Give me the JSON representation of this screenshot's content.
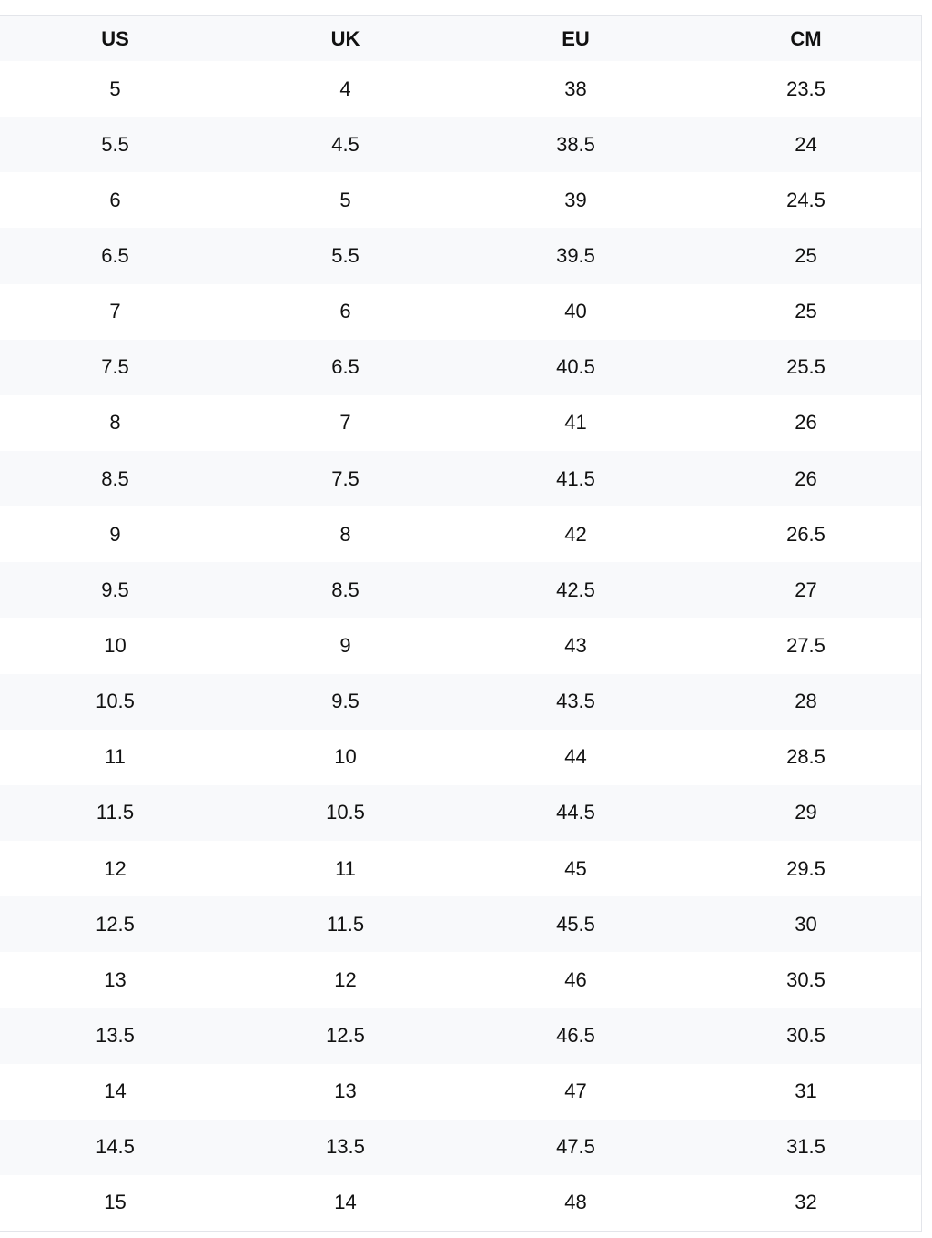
{
  "table": {
    "headers": [
      "US",
      "UK",
      "EU",
      "CM"
    ],
    "rows": [
      [
        "5",
        "4",
        "38",
        "23.5"
      ],
      [
        "5.5",
        "4.5",
        "38.5",
        "24"
      ],
      [
        "6",
        "5",
        "39",
        "24.5"
      ],
      [
        "6.5",
        "5.5",
        "39.5",
        "25"
      ],
      [
        "7",
        "6",
        "40",
        "25"
      ],
      [
        "7.5",
        "6.5",
        "40.5",
        "25.5"
      ],
      [
        "8",
        "7",
        "41",
        "26"
      ],
      [
        "8.5",
        "7.5",
        "41.5",
        "26"
      ],
      [
        "9",
        "8",
        "42",
        "26.5"
      ],
      [
        "9.5",
        "8.5",
        "42.5",
        "27"
      ],
      [
        "10",
        "9",
        "43",
        "27.5"
      ],
      [
        "10.5",
        "9.5",
        "43.5",
        "28"
      ],
      [
        "11",
        "10",
        "44",
        "28.5"
      ],
      [
        "11.5",
        "10.5",
        "44.5",
        "29"
      ],
      [
        "12",
        "11",
        "45",
        "29.5"
      ],
      [
        "12.5",
        "11.5",
        "45.5",
        "30"
      ],
      [
        "13",
        "12",
        "46",
        "30.5"
      ],
      [
        "13.5",
        "12.5",
        "46.5",
        "30.5"
      ],
      [
        "14",
        "13",
        "47",
        "31"
      ],
      [
        "14.5",
        "13.5",
        "47.5",
        "31.5"
      ],
      [
        "15",
        "14",
        "48",
        "32"
      ]
    ]
  }
}
